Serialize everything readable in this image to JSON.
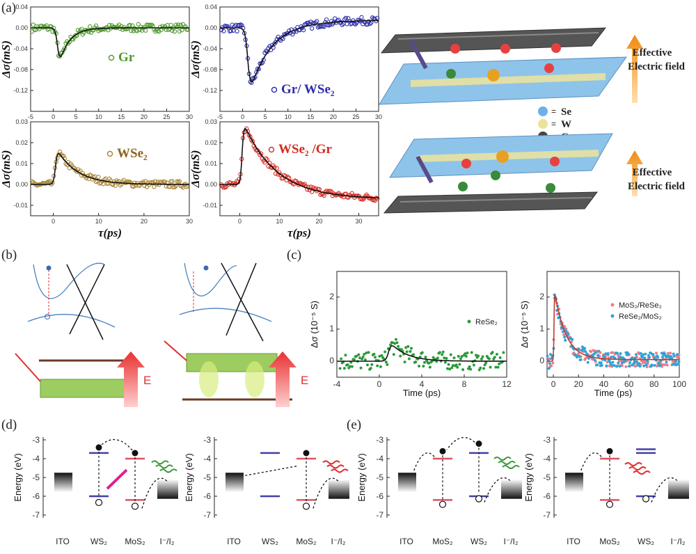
{
  "panel_labels": {
    "a": "(a)",
    "b": "(b)",
    "c": "(c)",
    "d": "(d)",
    "e": "(e)"
  },
  "colors": {
    "gr": "#4e9a2b",
    "grwse2": "#2c2ca8",
    "wse2": "#a88230",
    "wse2gr": "#d42a22",
    "rese2": "#2a9a3a",
    "mos2rese2": "#f07a8a",
    "rese2mos2": "#2aa6d6",
    "ws2": "#4040a8",
    "mos2": "#e05060",
    "fit": "#111111"
  },
  "schematic": {
    "field_label_line1": "Effective",
    "field_label_line2": "Electric field",
    "legend": [
      {
        "symbol": "=",
        "label": "Se"
      },
      {
        "symbol": "=",
        "label": "W"
      },
      {
        "symbol": "=",
        "label": "C"
      }
    ],
    "b_field_label": "E"
  },
  "energy_diagrams": {
    "ylabel": "Energy (eV)",
    "yticks": [
      "-3",
      "-4",
      "-5",
      "-6",
      "-7"
    ],
    "d_labels": [
      "ITO",
      "WS₂",
      "MoS₂",
      "I⁻/I₂"
    ],
    "e_labels": [
      "ITO",
      "MoS₂",
      "WS₂",
      "I⁻/I₂"
    ]
  },
  "chart_data": [
    {
      "id": "a1",
      "type": "scatter",
      "legend": "Gr",
      "color": "#4e9a2b",
      "ylabel": "Δσ(mS)",
      "xlim": [
        -5,
        30
      ],
      "ylim": [
        -0.16,
        0.04
      ],
      "xticks": [
        -5,
        0,
        5,
        10,
        15,
        20,
        25,
        30
      ],
      "yticks": [
        0.04,
        0.0,
        -0.04,
        -0.08,
        -0.12
      ],
      "ytick_labels": [
        "0.04",
        "0.00",
        "-0.04",
        "-0.08",
        "-0.12"
      ],
      "model": {
        "A": -0.08,
        "t0": 1,
        "tr": 0.6,
        "td": 2.2
      }
    },
    {
      "id": "a2",
      "type": "scatter",
      "legend": "Gr/ WSe₂",
      "color": "#2c2ca8",
      "ylabel": "Δσ(mS)",
      "xlim": [
        -5,
        30
      ],
      "ylim": [
        -0.16,
        0.04
      ],
      "xticks": [
        -5,
        0,
        5,
        10,
        15,
        20,
        25,
        30
      ],
      "yticks": [
        0.04,
        0.0,
        -0.04,
        -0.08,
        -0.12
      ],
      "ytick_labels": [
        "0.04",
        "0.00",
        "-0.04",
        "-0.08",
        "-0.12"
      ],
      "model": {
        "A": -0.135,
        "t0": 1.2,
        "tr": 0.7,
        "td": 4.5,
        "offset_late": 0.015
      }
    },
    {
      "id": "a3",
      "type": "scatter",
      "legend": "WSe₂",
      "color": "#a88230",
      "ylabel": "Δσ(mS)",
      "xlabel": "τ(ps)",
      "xlim": [
        -5,
        30
      ],
      "ylim": [
        -0.015,
        0.03
      ],
      "xticks": [
        0,
        10,
        20,
        30
      ],
      "yticks": [
        0.03,
        0.02,
        0.01,
        0.0,
        -0.01
      ],
      "ytick_labels": [
        "0.03",
        "0.02",
        "0.01",
        "0.00",
        "-0.01"
      ],
      "model": {
        "A": 0.018,
        "t0": 0.5,
        "tr": 0.5,
        "td": 4.5
      }
    },
    {
      "id": "a4",
      "type": "scatter",
      "legend": "WSe₂ /Gr",
      "color": "#d42a22",
      "ylabel": "Δσ(mS)",
      "xlabel": "τ(ps)",
      "xlim": [
        -5,
        35
      ],
      "ylim": [
        -0.015,
        0.03
      ],
      "xticks": [
        0,
        10,
        20,
        30
      ],
      "yticks": [
        0.03,
        0.02,
        0.01,
        0.0,
        -0.01
      ],
      "ytick_labels": [
        "0.03",
        "0.02",
        "0.01",
        "0.00",
        "-0.01"
      ],
      "model": {
        "A": 0.031,
        "t0": 0.6,
        "tr": 0.5,
        "td": 8,
        "offset": -0.007
      }
    },
    {
      "id": "c1",
      "type": "scatter",
      "legend": "ReSe₂",
      "color": "#2a9a3a",
      "ylabel": "Δσ (10⁻⁵ S)",
      "xlabel": "Time (ps)",
      "xlim": [
        -4,
        12
      ],
      "ylim": [
        -0.5,
        2.8
      ],
      "xticks": [
        -4,
        0,
        4,
        8,
        12
      ],
      "yticks": [
        0,
        1,
        2
      ],
      "model": {
        "A": 0.65,
        "t0": 0.9,
        "tr": 0.3,
        "td": 1.5
      }
    },
    {
      "id": "c2",
      "type": "scatter",
      "legend": [
        "MoS₂/ReSe₂",
        "ReSe₂/MoS₂"
      ],
      "colors": [
        "#f07a8a",
        "#2aa6d6"
      ],
      "ylabel": "Δσ (10⁻⁵ S)",
      "xlabel": "Time (ps)",
      "xlim": [
        -5,
        100
      ],
      "ylim": [
        -0.5,
        2.8
      ],
      "xticks": [
        0,
        20,
        40,
        60,
        80,
        100
      ],
      "yticks": [
        0,
        1,
        2
      ],
      "model": {
        "A": 2.3,
        "t0": 0.5,
        "tr": 0.4,
        "td": 9,
        "offset": 0.05
      }
    }
  ]
}
